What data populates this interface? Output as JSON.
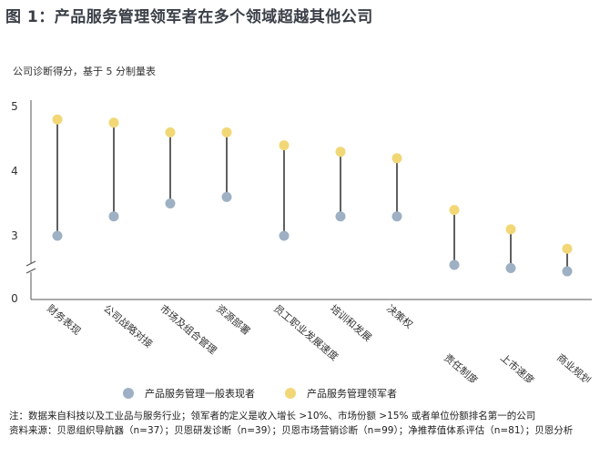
{
  "title": "图 1：产品服务管理领军者在多个领域超越其他公司",
  "subtitle": "公司诊断得分，基于 5 分制量表",
  "chart_data": {
    "type": "dumbbell",
    "categories": [
      "财务表现",
      "公司战略对接",
      "市场及组合管理",
      "资源部署",
      "员工职业发展速度",
      "培训和发展",
      "决策权",
      "责任制度",
      "上市速度",
      "商业规划"
    ],
    "series": [
      {
        "name": "产品服务管理一般表现者",
        "color": "#9eb0c3",
        "values": [
          3.0,
          3.3,
          3.5,
          3.6,
          3.0,
          3.3,
          3.3,
          2.55,
          2.5,
          2.45
        ]
      },
      {
        "name": "产品服务管理领军者",
        "color": "#f2d776",
        "values": [
          4.8,
          4.75,
          4.6,
          4.6,
          4.4,
          4.3,
          4.2,
          3.4,
          3.1,
          2.8
        ]
      }
    ],
    "yticks": [
      "0",
      "3",
      "4",
      "5"
    ],
    "ylim": [
      0,
      5
    ],
    "axis_break": true
  },
  "notes": {
    "note": "注：数据来自科技以及工业品与服务行业；领军者的定义是收入增长 >10%、市场份额 >15% 或者单位份额排名第一的公司",
    "source": "资料来源：贝恩组织导航器（n=37）；贝恩研发诊断（n=39）；贝恩市场营销诊断（n=99）；净推荐值体系评估（n=81）；贝恩分析"
  }
}
